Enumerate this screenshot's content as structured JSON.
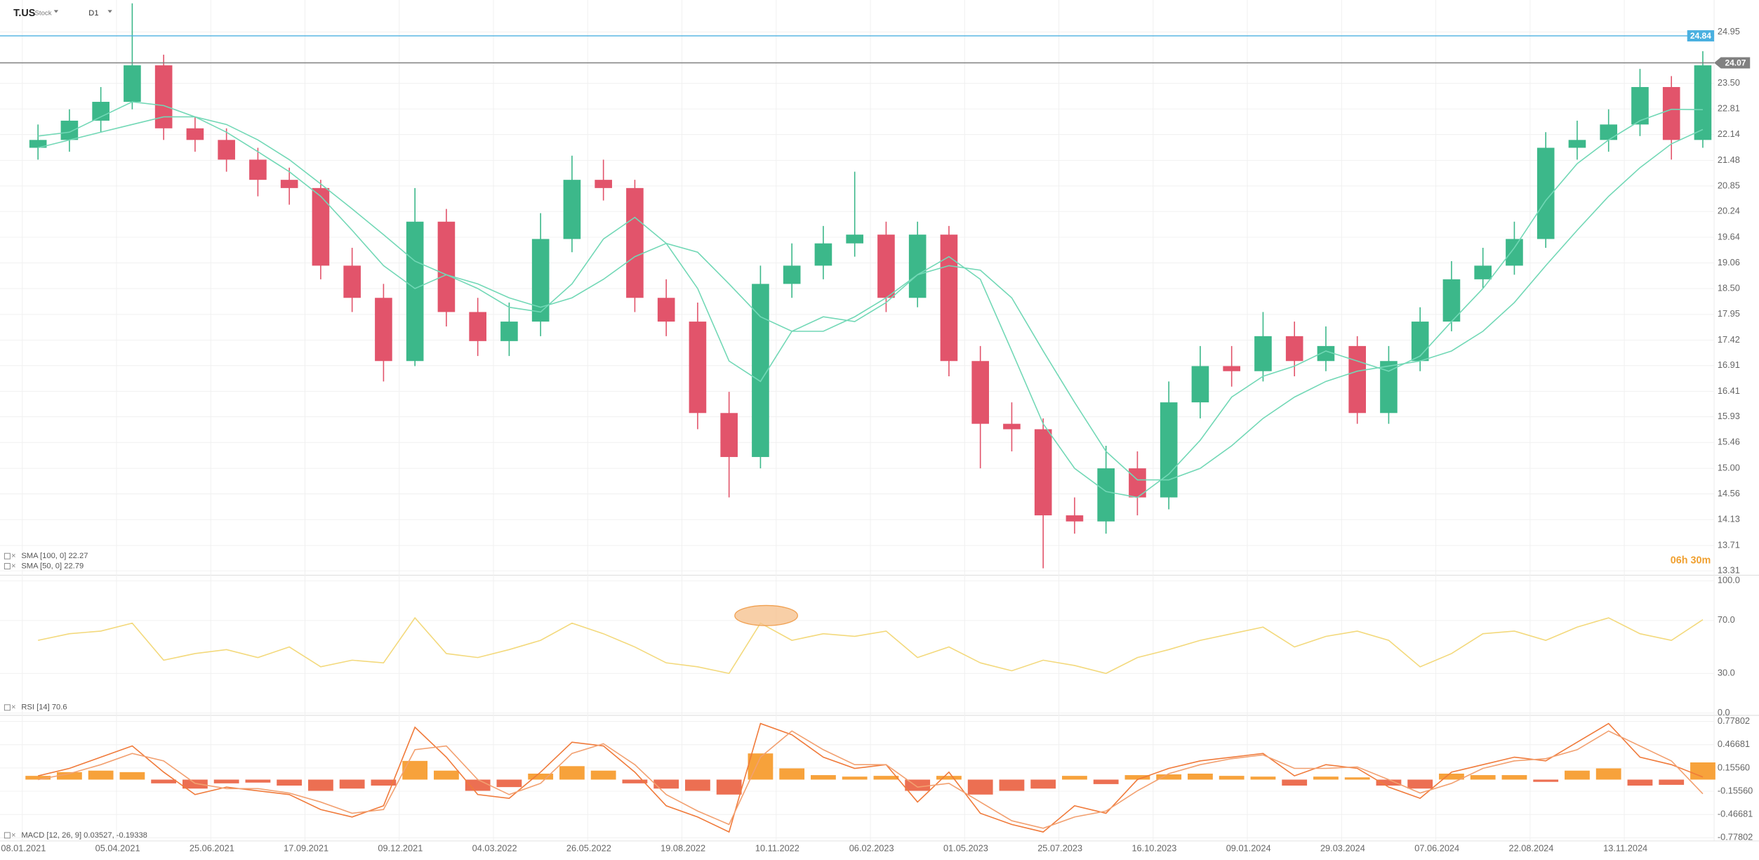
{
  "header": {
    "symbol": "T.US",
    "kind": "Stock",
    "timeframe": "D1"
  },
  "countdown": "06h 30m",
  "chart_data": [
    {
      "type": "candlestick",
      "xlim": [
        -0.71,
        53.86
      ],
      "xticks": [
        {
          "value": 0,
          "label": "08.01.2021"
        },
        {
          "value": 3,
          "label": "05.04.2021"
        },
        {
          "value": 6,
          "label": "25.06.2021"
        },
        {
          "value": 9,
          "label": "17.09.2021"
        },
        {
          "value": 12,
          "label": "09.12.2021"
        },
        {
          "value": 15,
          "label": "04.03.2022"
        },
        {
          "value": 18,
          "label": "26.05.2022"
        },
        {
          "value": 21,
          "label": "19.08.2022"
        },
        {
          "value": 24,
          "label": "10.11.2022"
        },
        {
          "value": 27,
          "label": "06.02.2023"
        },
        {
          "value": 30,
          "label": "01.05.2023"
        },
        {
          "value": 33,
          "label": "25.07.2023"
        },
        {
          "value": 36,
          "label": "16.10.2023"
        },
        {
          "value": 39,
          "label": "09.01.2024"
        },
        {
          "value": 42,
          "label": "29.03.2024"
        },
        {
          "value": 45,
          "label": "07.06.2024"
        },
        {
          "value": 48,
          "label": "22.08.2024"
        },
        {
          "value": 51,
          "label": "13.11.2024"
        }
      ],
      "ylim": [
        13.26,
        25.9
      ],
      "log_scale": true,
      "grid": true,
      "yticks": [
        24.95,
        {
          "value": 23.5,
          "label": "23.50"
        },
        22.81,
        22.14,
        21.48,
        20.85,
        20.24,
        19.64,
        19.06,
        {
          "value": 18.5,
          "label": "18.50"
        },
        17.95,
        17.42,
        16.91,
        16.41,
        15.93,
        15.46,
        {
          "value": 15,
          "label": "15.00"
        },
        14.56,
        14.13,
        13.71,
        13.31
      ],
      "up_color": "#3cb88a",
      "down_color": "#e2546b",
      "open": [
        21.8,
        22.0,
        22.5,
        23.0,
        24.0,
        22.3,
        22.0,
        21.5,
        21.0,
        20.8,
        19.0,
        18.3,
        17.0,
        20.0,
        18.0,
        17.4,
        17.8,
        19.6,
        21.0,
        20.8,
        18.3,
        17.8,
        16.0,
        15.2,
        18.6,
        19.0,
        19.5,
        19.7,
        18.3,
        19.7,
        17.0,
        15.8,
        15.7,
        14.2,
        14.1,
        15.0,
        14.5,
        16.2,
        16.9,
        16.8,
        17.5,
        17.0,
        17.3,
        16.0,
        17.0,
        17.8,
        18.7,
        19.0,
        19.6,
        21.8,
        22.0,
        22.4,
        23.4,
        22.0
      ],
      "high": [
        22.4,
        22.8,
        23.4,
        25.8,
        24.3,
        22.6,
        22.3,
        21.8,
        21.3,
        21.0,
        19.4,
        18.6,
        20.8,
        20.3,
        18.3,
        18.2,
        20.2,
        21.6,
        21.5,
        21.0,
        18.7,
        18.2,
        16.4,
        19.0,
        19.5,
        19.9,
        21.2,
        20.0,
        20.0,
        19.9,
        17.3,
        16.2,
        15.9,
        14.5,
        15.4,
        15.3,
        16.6,
        17.3,
        17.3,
        18.0,
        17.8,
        17.7,
        17.5,
        17.3,
        18.1,
        19.1,
        19.4,
        20.0,
        22.2,
        22.5,
        22.8,
        23.9,
        23.7,
        24.4
      ],
      "low": [
        21.5,
        21.7,
        22.2,
        22.8,
        22.0,
        21.7,
        21.2,
        20.6,
        20.4,
        18.7,
        18.0,
        16.6,
        16.9,
        17.7,
        17.1,
        17.1,
        17.5,
        19.3,
        20.5,
        18.0,
        17.5,
        15.7,
        14.5,
        15.0,
        18.3,
        18.7,
        19.2,
        18.0,
        18.1,
        16.7,
        15.0,
        15.3,
        13.35,
        13.9,
        13.9,
        14.2,
        14.3,
        15.9,
        16.5,
        16.6,
        16.7,
        16.8,
        15.8,
        15.8,
        16.8,
        17.6,
        18.5,
        18.8,
        19.4,
        21.5,
        21.7,
        22.1,
        21.5,
        21.8
      ],
      "close": [
        22.0,
        22.5,
        23.0,
        24.0,
        22.3,
        22.0,
        21.5,
        21.0,
        20.8,
        19.0,
        18.3,
        17.0,
        20.0,
        18.0,
        17.4,
        17.8,
        19.6,
        21.0,
        20.8,
        18.3,
        17.8,
        16.0,
        15.2,
        18.6,
        19.0,
        19.5,
        19.7,
        18.3,
        19.7,
        17.0,
        15.8,
        15.7,
        14.2,
        14.1,
        15.0,
        14.5,
        16.2,
        16.9,
        16.8,
        17.5,
        17.0,
        17.3,
        16.0,
        17.0,
        17.8,
        18.7,
        19.0,
        19.6,
        21.8,
        22.0,
        22.4,
        23.4,
        22.0,
        24.0
      ],
      "series": [
        {
          "legend": "SMA [100, 0] 22.27",
          "color": "#72d8b6",
          "values": [
            21.8,
            22.0,
            22.2,
            22.4,
            22.6,
            22.6,
            22.4,
            22.0,
            21.5,
            20.9,
            20.3,
            19.7,
            19.1,
            18.8,
            18.6,
            18.3,
            18.1,
            18.3,
            18.7,
            19.2,
            19.5,
            19.3,
            18.6,
            17.9,
            17.6,
            17.6,
            17.9,
            18.3,
            18.8,
            19.0,
            18.9,
            18.3,
            17.2,
            16.2,
            15.3,
            14.8,
            14.8,
            15.0,
            15.4,
            15.9,
            16.3,
            16.6,
            16.8,
            16.9,
            17.0,
            17.2,
            17.6,
            18.2,
            19.0,
            19.8,
            20.6,
            21.3,
            21.9,
            22.27
          ]
        },
        {
          "legend": "SMA [50, 0] 22.79",
          "color": "#72d8b6",
          "values": [
            22.1,
            22.2,
            22.6,
            23.0,
            22.9,
            22.6,
            22.2,
            21.7,
            21.2,
            20.6,
            19.8,
            19.0,
            18.5,
            18.8,
            18.5,
            18.1,
            18.0,
            18.6,
            19.6,
            20.1,
            19.5,
            18.5,
            17.0,
            16.6,
            17.6,
            17.9,
            17.8,
            18.2,
            18.8,
            19.2,
            18.7,
            17.2,
            15.8,
            15.0,
            14.6,
            14.5,
            14.9,
            15.5,
            16.3,
            16.7,
            16.9,
            17.2,
            17.0,
            16.8,
            17.1,
            17.8,
            18.5,
            19.4,
            20.5,
            21.4,
            22.0,
            22.5,
            22.8,
            22.79
          ]
        }
      ],
      "levels": [
        {
          "value": 24.84,
          "color": "#4ab0e0"
        },
        {
          "value": 24.07,
          "color": "#808080"
        }
      ]
    },
    {
      "type": "line",
      "ylim": [
        0,
        100
      ],
      "yticks": [
        {
          "value": 100,
          "label": "100.0"
        },
        {
          "value": 70,
          "label": "70.0"
        },
        {
          "value": 30,
          "label": "30.0"
        },
        {
          "value": 0,
          "label": "0.0"
        }
      ],
      "series": [
        {
          "legend": "RSI [14] 70.6",
          "color": "#f3d97c",
          "values": [
            55,
            60,
            62,
            68,
            40,
            45,
            48,
            42,
            50,
            35,
            40,
            38,
            72,
            45,
            42,
            48,
            55,
            68,
            60,
            50,
            38,
            35,
            30,
            68,
            55,
            60,
            58,
            62,
            42,
            50,
            38,
            32,
            40,
            36,
            30,
            42,
            48,
            55,
            60,
            65,
            50,
            58,
            62,
            55,
            35,
            45,
            60,
            62,
            55,
            65,
            72,
            60,
            55,
            70.6
          ]
        }
      ]
    },
    {
      "type": "macd",
      "legend": "MACD [12, 26, 9] 0.03527, -0.19338",
      "ylim": [
        -0.82,
        0.85
      ],
      "yticks": [
        0.77802,
        0.46681,
        {
          "value": 0.1556,
          "label": "0.15560"
        },
        {
          "value": -0.1556,
          "label": "-0.15560"
        },
        -0.46681,
        -0.77802
      ],
      "hist_up_color": "#f7a23b",
      "hist_down_color": "#ec6f52",
      "histogram": [
        0.05,
        0.1,
        0.12,
        0.1,
        -0.05,
        -0.12,
        -0.05,
        -0.04,
        -0.08,
        -0.15,
        -0.12,
        -0.08,
        0.25,
        0.12,
        -0.15,
        -0.1,
        0.08,
        0.18,
        0.12,
        -0.05,
        -0.12,
        -0.15,
        -0.2,
        0.35,
        0.15,
        0.06,
        0.04,
        0.05,
        -0.15,
        0.05,
        -0.2,
        -0.15,
        -0.12,
        0.05,
        -0.06,
        0.06,
        0.07,
        0.08,
        0.05,
        0.04,
        -0.08,
        0.04,
        0.03,
        -0.08,
        -0.12,
        0.08,
        0.06,
        0.06,
        -0.03,
        0.12,
        0.15,
        -0.08,
        -0.07,
        0.23
      ],
      "series": [
        {
          "color": "#f07a3a",
          "values": [
            0.05,
            0.15,
            0.3,
            0.45,
            0.1,
            -0.2,
            -0.1,
            -0.15,
            -0.2,
            -0.4,
            -0.5,
            -0.35,
            0.7,
            0.3,
            -0.2,
            -0.25,
            0.1,
            0.5,
            0.45,
            0.1,
            -0.35,
            -0.5,
            -0.7,
            0.75,
            0.6,
            0.3,
            0.15,
            0.2,
            -0.3,
            0.1,
            -0.45,
            -0.6,
            -0.7,
            -0.35,
            -0.45,
            0.0,
            0.15,
            0.25,
            0.3,
            0.35,
            0.05,
            0.2,
            0.15,
            -0.1,
            -0.25,
            0.1,
            0.2,
            0.3,
            0.25,
            0.5,
            0.75,
            0.3,
            0.2,
            0.035
          ]
        },
        {
          "color": "#f2a070",
          "values": [
            0.0,
            0.08,
            0.2,
            0.35,
            0.25,
            -0.05,
            -0.12,
            -0.12,
            -0.18,
            -0.3,
            -0.45,
            -0.4,
            0.4,
            0.45,
            0.0,
            -0.2,
            -0.05,
            0.35,
            0.48,
            0.2,
            -0.2,
            -0.42,
            -0.6,
            0.3,
            0.65,
            0.4,
            0.2,
            0.2,
            -0.1,
            -0.05,
            -0.3,
            -0.55,
            -0.65,
            -0.5,
            -0.42,
            -0.15,
            0.08,
            0.2,
            0.28,
            0.33,
            0.15,
            0.15,
            0.17,
            0.0,
            -0.18,
            -0.05,
            0.15,
            0.25,
            0.28,
            0.4,
            0.65,
            0.45,
            0.25,
            -0.19
          ]
        }
      ]
    }
  ]
}
